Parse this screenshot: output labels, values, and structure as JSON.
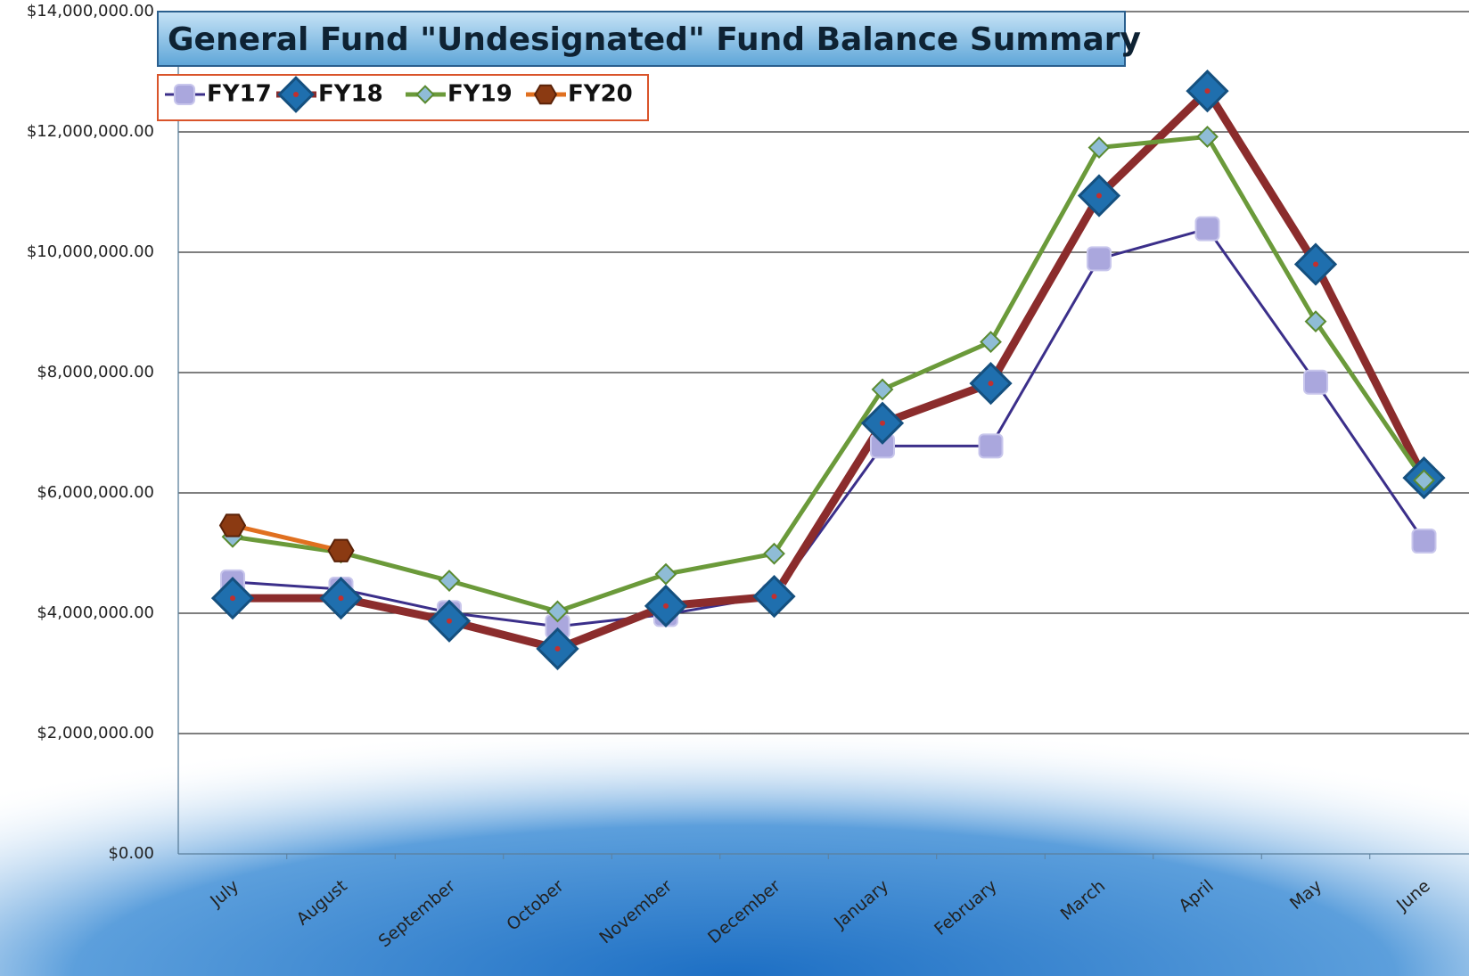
{
  "chart_data": {
    "type": "line",
    "title": "General Fund \"Undesignated\" Fund Balance Summary",
    "categories": [
      "July",
      "August",
      "September",
      "October",
      "November",
      "December",
      "January",
      "February",
      "March",
      "April",
      "May",
      "June"
    ],
    "series": [
      {
        "name": "FY17",
        "color": "#3b2f8a",
        "marker": "square",
        "marker_color": "#aaa7dd",
        "values": [
          4520000,
          4400000,
          4010000,
          3780000,
          3980000,
          4290000,
          6780000,
          6780000,
          9890000,
          10390000,
          7840000,
          5200000
        ]
      },
      {
        "name": "FY18",
        "color": "#8b2c2c",
        "marker": "diamond",
        "marker_color": "#1f6fae",
        "values": [
          4250000,
          4250000,
          3870000,
          3410000,
          4120000,
          4280000,
          7160000,
          7820000,
          10940000,
          12680000,
          9800000,
          6250000
        ]
      },
      {
        "name": "FY19",
        "color": "#6b9a3a",
        "marker": "small-diamond",
        "marker_color": "#8fbcd6",
        "values": [
          5270000,
          5010000,
          4540000,
          4030000,
          4650000,
          4990000,
          7720000,
          8510000,
          11740000,
          11920000,
          8850000,
          6210000
        ]
      },
      {
        "name": "FY20",
        "color": "#e07020",
        "marker": "hexagon",
        "marker_color": "#8b3a12",
        "values": [
          5460000,
          5040000,
          null,
          null,
          null,
          null,
          null,
          null,
          null,
          null,
          null,
          null
        ]
      }
    ],
    "ylim": [
      0,
      14000000
    ],
    "yticks": [
      {
        "value": 0,
        "label": "$0.00"
      },
      {
        "value": 2000000,
        "label": "$2,000,000.00"
      },
      {
        "value": 4000000,
        "label": "$4,000,000.00"
      },
      {
        "value": 6000000,
        "label": "$6,000,000.00"
      },
      {
        "value": 8000000,
        "label": "$8,000,000.00"
      },
      {
        "value": 10000000,
        "label": "$10,000,000.00"
      },
      {
        "value": 12000000,
        "label": "$12,000,000.00"
      },
      {
        "value": 14000000,
        "label": "$14,000,000.00"
      }
    ],
    "grid": true,
    "legend": "top-left"
  }
}
